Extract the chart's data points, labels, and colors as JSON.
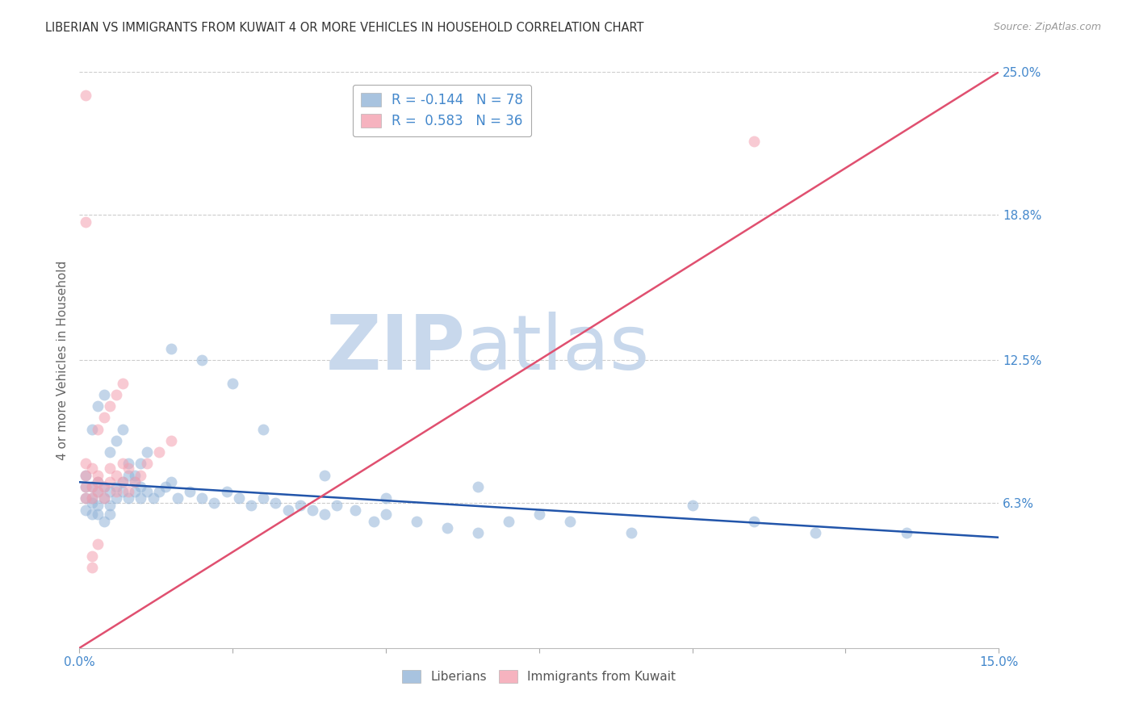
{
  "title": "LIBERIAN VS IMMIGRANTS FROM KUWAIT 4 OR MORE VEHICLES IN HOUSEHOLD CORRELATION CHART",
  "source": "Source: ZipAtlas.com",
  "ylabel": "4 or more Vehicles in Household",
  "watermark_zip": "ZIP",
  "watermark_atlas": "atlas",
  "xmin": 0.0,
  "xmax": 0.15,
  "ymin": 0.0,
  "ymax": 0.25,
  "ytick_positions": [
    0.063,
    0.125,
    0.188,
    0.25
  ],
  "ytick_labels": [
    "6.3%",
    "12.5%",
    "18.8%",
    "25.0%"
  ],
  "xtick_positions": [
    0.0,
    0.025,
    0.05,
    0.075,
    0.1,
    0.125,
    0.15
  ],
  "xtick_labels": [
    "0.0%",
    "",
    "",
    "",
    "",
    "",
    "15.0%"
  ],
  "blue_label": "Liberians",
  "pink_label": "Immigrants from Kuwait",
  "blue_R": -0.144,
  "blue_N": 78,
  "pink_R": 0.583,
  "pink_N": 36,
  "blue_color": "#92B4D8",
  "pink_color": "#F4A0B0",
  "blue_line_color": "#2255AA",
  "pink_line_color": "#E05070",
  "axis_label_color": "#4488CC",
  "grid_color": "#CCCCCC",
  "background_color": "#FFFFFF",
  "blue_trend_x": [
    0.0,
    0.15
  ],
  "blue_trend_y": [
    0.072,
    0.048
  ],
  "pink_trend_x": [
    0.0,
    0.15
  ],
  "pink_trend_y": [
    0.0,
    0.25
  ],
  "blue_scatter_x": [
    0.001,
    0.001,
    0.001,
    0.001,
    0.002,
    0.002,
    0.002,
    0.002,
    0.003,
    0.003,
    0.003,
    0.003,
    0.004,
    0.004,
    0.004,
    0.005,
    0.005,
    0.005,
    0.006,
    0.006,
    0.007,
    0.007,
    0.008,
    0.008,
    0.009,
    0.009,
    0.01,
    0.01,
    0.011,
    0.012,
    0.013,
    0.014,
    0.015,
    0.016,
    0.018,
    0.02,
    0.022,
    0.024,
    0.026,
    0.028,
    0.03,
    0.032,
    0.034,
    0.036,
    0.038,
    0.04,
    0.042,
    0.045,
    0.048,
    0.05,
    0.055,
    0.06,
    0.065,
    0.07,
    0.075,
    0.08,
    0.09,
    0.1,
    0.11,
    0.12,
    0.002,
    0.003,
    0.004,
    0.005,
    0.006,
    0.007,
    0.008,
    0.009,
    0.01,
    0.011,
    0.015,
    0.02,
    0.025,
    0.03,
    0.04,
    0.05,
    0.065,
    0.135
  ],
  "blue_scatter_y": [
    0.065,
    0.07,
    0.075,
    0.06,
    0.065,
    0.07,
    0.058,
    0.063,
    0.068,
    0.072,
    0.062,
    0.058,
    0.065,
    0.055,
    0.07,
    0.068,
    0.062,
    0.058,
    0.065,
    0.07,
    0.072,
    0.068,
    0.065,
    0.075,
    0.068,
    0.072,
    0.065,
    0.07,
    0.068,
    0.065,
    0.068,
    0.07,
    0.072,
    0.065,
    0.068,
    0.065,
    0.063,
    0.068,
    0.065,
    0.062,
    0.065,
    0.063,
    0.06,
    0.062,
    0.06,
    0.058,
    0.062,
    0.06,
    0.055,
    0.058,
    0.055,
    0.052,
    0.05,
    0.055,
    0.058,
    0.055,
    0.05,
    0.062,
    0.055,
    0.05,
    0.095,
    0.105,
    0.11,
    0.085,
    0.09,
    0.095,
    0.08,
    0.075,
    0.08,
    0.085,
    0.13,
    0.125,
    0.115,
    0.095,
    0.075,
    0.065,
    0.07,
    0.05
  ],
  "pink_scatter_x": [
    0.001,
    0.001,
    0.001,
    0.001,
    0.002,
    0.002,
    0.002,
    0.003,
    0.003,
    0.003,
    0.004,
    0.004,
    0.005,
    0.005,
    0.006,
    0.006,
    0.007,
    0.007,
    0.008,
    0.008,
    0.009,
    0.01,
    0.011,
    0.013,
    0.015,
    0.003,
    0.004,
    0.005,
    0.006,
    0.007,
    0.001,
    0.002,
    0.002,
    0.003,
    0.001,
    0.11
  ],
  "pink_scatter_y": [
    0.065,
    0.07,
    0.075,
    0.08,
    0.065,
    0.07,
    0.078,
    0.072,
    0.068,
    0.075,
    0.07,
    0.065,
    0.072,
    0.078,
    0.068,
    0.075,
    0.08,
    0.072,
    0.068,
    0.078,
    0.072,
    0.075,
    0.08,
    0.085,
    0.09,
    0.095,
    0.1,
    0.105,
    0.11,
    0.115,
    0.185,
    0.035,
    0.04,
    0.045,
    0.24,
    0.22
  ]
}
